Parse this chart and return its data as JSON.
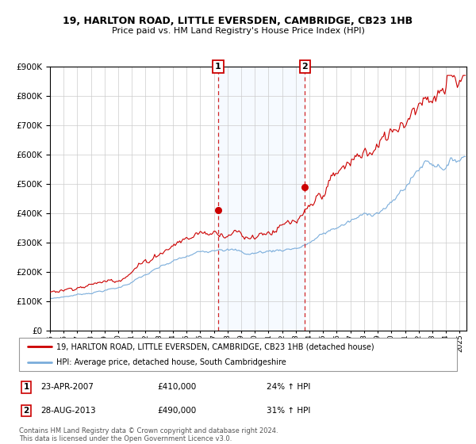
{
  "title": "19, HARLTON ROAD, LITTLE EVERSDEN, CAMBRIDGE, CB23 1HB",
  "subtitle": "Price paid vs. HM Land Registry's House Price Index (HPI)",
  "legend_line1": "19, HARLTON ROAD, LITTLE EVERSDEN, CAMBRIDGE, CB23 1HB (detached house)",
  "legend_line2": "HPI: Average price, detached house, South Cambridgeshire",
  "annotation1_date": "23-APR-2007",
  "annotation1_price": "£410,000",
  "annotation1_hpi": "24% ↑ HPI",
  "annotation2_date": "28-AUG-2013",
  "annotation2_price": "£490,000",
  "annotation2_hpi": "31% ↑ HPI",
  "footer": "Contains HM Land Registry data © Crown copyright and database right 2024.\nThis data is licensed under the Open Government Licence v3.0.",
  "red_color": "#cc0000",
  "blue_color": "#7aaddb",
  "shade_color": "#ddeeff",
  "sale1_year": 2007.31,
  "sale2_year": 2013.66,
  "sale1_price": 410000,
  "sale2_price": 490000,
  "ylim_max": 900000,
  "xlim_start": 1995.0,
  "xlim_end": 2025.5
}
